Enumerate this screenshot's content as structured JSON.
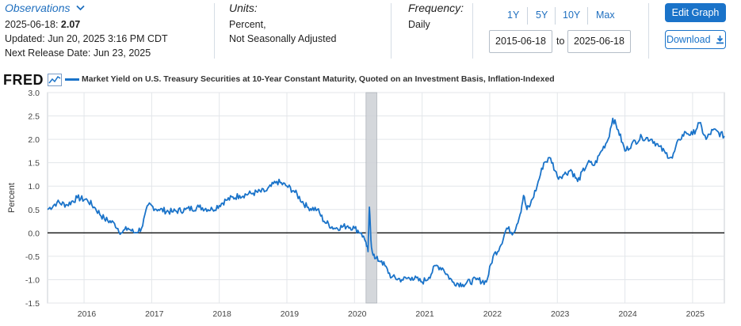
{
  "observations": {
    "title": "Observations",
    "date": "2025-06-18:",
    "value": "2.07",
    "updated": "Updated: Jun 20, 2025 3:16 PM CDT",
    "next_release": "Next Release Date: Jun 23, 2025"
  },
  "units": {
    "label": "Units:",
    "line1": "Percent,",
    "line2": "Not Seasonally Adjusted"
  },
  "frequency": {
    "label": "Frequency:",
    "value": "Daily"
  },
  "range": {
    "buttons": [
      "1Y",
      "5Y",
      "10Y",
      "Max"
    ],
    "start": "2015-06-18",
    "to_label": "to",
    "end": "2025-06-18"
  },
  "actions": {
    "edit": "Edit Graph",
    "download": "Download"
  },
  "brand": {
    "logo": "FRED"
  },
  "colors": {
    "series": "#1a73c9",
    "recession": "#d0d3d8",
    "link": "#1f6fbf"
  },
  "icons": [
    "chevron-down-icon",
    "edit-icon",
    "download-icon",
    "fred-chart-icon"
  ],
  "chart_data": {
    "type": "line",
    "title": "",
    "xlabel": "",
    "ylabel": "Percent",
    "ylim": [
      -1.5,
      3.0
    ],
    "xlim": [
      2015.46,
      2025.47
    ],
    "yticks": [
      "3.0",
      "2.5",
      "2.0",
      "1.5",
      "1.0",
      "0.5",
      "0.0",
      "-0.5",
      "-1.0",
      "-1.5"
    ],
    "xticks": [
      "2016",
      "2017",
      "2018",
      "2019",
      "2020",
      "2021",
      "2022",
      "2023",
      "2024",
      "2025"
    ],
    "grid": true,
    "legend_position": "top-left",
    "recession_shading": [
      [
        2020.17,
        2020.33
      ]
    ],
    "reference_line_y": 0.0,
    "series": [
      {
        "name": "Market Yield on U.S. Treasury Securities at 10-Year Constant Maturity, Quoted on an Investment Basis, Inflation-Indexed",
        "x": [
          2015.46,
          2015.6,
          2015.75,
          2015.9,
          2016.05,
          2016.15,
          2016.3,
          2016.45,
          2016.55,
          2016.65,
          2016.75,
          2016.85,
          2016.95,
          2017.1,
          2017.3,
          2017.5,
          2017.7,
          2017.9,
          2018.1,
          2018.3,
          2018.5,
          2018.7,
          2018.85,
          2019.0,
          2019.1,
          2019.3,
          2019.45,
          2019.55,
          2019.7,
          2019.9,
          2020.0,
          2020.1,
          2020.17,
          2020.2,
          2020.22,
          2020.25,
          2020.3,
          2020.4,
          2020.55,
          2020.7,
          2020.85,
          2021.0,
          2021.1,
          2021.2,
          2021.3,
          2021.45,
          2021.6,
          2021.8,
          2021.95,
          2022.05,
          2022.15,
          2022.25,
          2022.35,
          2022.45,
          2022.5,
          2022.55,
          2022.6,
          2022.7,
          2022.8,
          2022.9,
          2023.0,
          2023.1,
          2023.2,
          2023.3,
          2023.45,
          2023.55,
          2023.65,
          2023.75,
          2023.82,
          2023.9,
          2024.0,
          2024.1,
          2024.25,
          2024.4,
          2024.5,
          2024.6,
          2024.7,
          2024.8,
          2024.9,
          2025.0,
          2025.1,
          2025.2,
          2025.3,
          2025.47
        ],
        "values": [
          0.5,
          0.65,
          0.6,
          0.75,
          0.7,
          0.55,
          0.3,
          0.2,
          0.0,
          0.1,
          0.0,
          0.1,
          0.6,
          0.5,
          0.45,
          0.5,
          0.55,
          0.5,
          0.7,
          0.8,
          0.85,
          0.9,
          1.1,
          1.0,
          0.9,
          0.55,
          0.5,
          0.25,
          0.1,
          0.15,
          0.1,
          0.0,
          -0.2,
          -0.4,
          0.55,
          -0.3,
          -0.55,
          -0.6,
          -0.95,
          -1.0,
          -0.95,
          -1.05,
          -0.95,
          -0.7,
          -0.75,
          -1.05,
          -1.1,
          -1.0,
          -1.05,
          -0.5,
          -0.3,
          0.1,
          0.0,
          0.4,
          0.8,
          0.5,
          0.6,
          1.0,
          1.5,
          1.6,
          1.2,
          1.25,
          1.35,
          1.1,
          1.5,
          1.45,
          1.75,
          2.0,
          2.45,
          2.2,
          1.75,
          1.9,
          2.05,
          2.0,
          1.85,
          1.7,
          1.6,
          2.0,
          2.15,
          2.1,
          2.35,
          2.0,
          2.2,
          2.07
        ]
      }
    ]
  }
}
